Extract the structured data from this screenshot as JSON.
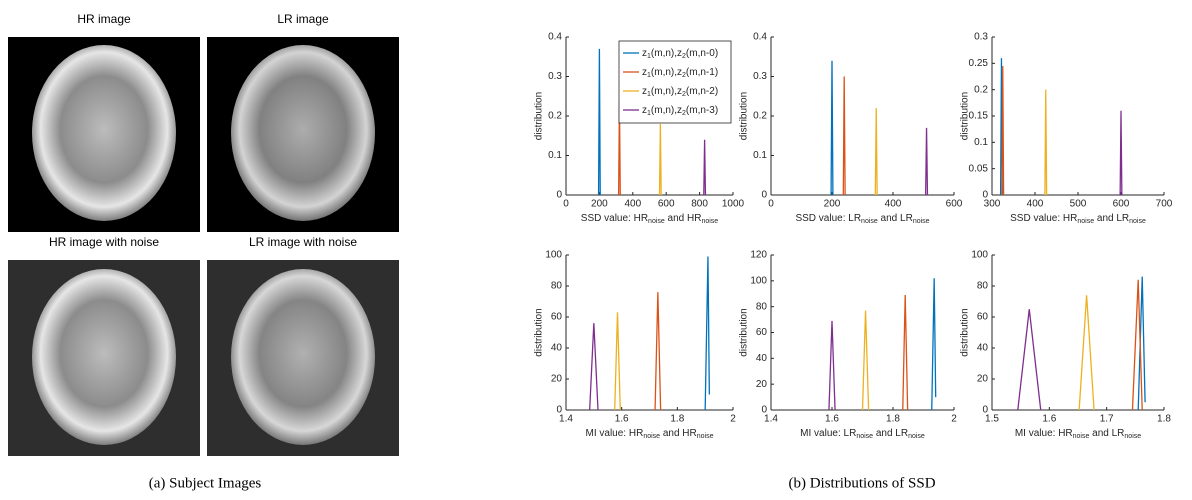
{
  "images": [
    {
      "title": "HR image"
    },
    {
      "title": "LR image"
    },
    {
      "title": "HR image with noise"
    },
    {
      "title": "LR image with noise"
    }
  ],
  "captions": [
    "(a) Subject Images",
    "(b) Distributions of SSD"
  ],
  "chart_data": [
    {
      "type": "line",
      "ylabel": "distribution",
      "xlabel": [
        {
          "text": "SSD value: HR"
        },
        {
          "sub": "noise"
        },
        {
          "text": " and HR"
        },
        {
          "sub": "noise"
        }
      ],
      "xlim": [
        0,
        1000
      ],
      "xticks": [
        0,
        200,
        400,
        600,
        800,
        1000
      ],
      "ylim": [
        0,
        0.4
      ],
      "yticks": [
        0,
        0.1,
        0.2,
        0.3,
        0.4
      ],
      "legend": "upper right",
      "series": [
        {
          "name": [
            {
              "text": "z"
            },
            {
              "sub": "1"
            },
            {
              "text": "(m,n),z"
            },
            {
              "sub": "2"
            },
            {
              "text": "(m,n-0)"
            }
          ],
          "color": "#0072bd",
          "x": [
            195,
            200,
            205
          ],
          "values": [
            0,
            0.37,
            0
          ]
        },
        {
          "name": [
            {
              "text": "z"
            },
            {
              "sub": "1"
            },
            {
              "text": "(m,n),z"
            },
            {
              "sub": "2"
            },
            {
              "text": "(m,n-1)"
            }
          ],
          "color": "#d95319",
          "x": [
            315,
            320,
            325
          ],
          "values": [
            0,
            0.24,
            0
          ]
        },
        {
          "name": [
            {
              "text": "z"
            },
            {
              "sub": "1"
            },
            {
              "text": "(m,n),z"
            },
            {
              "sub": "2"
            },
            {
              "text": "(m,n-2)"
            }
          ],
          "color": "#edb120",
          "x": [
            560,
            565,
            570
          ],
          "values": [
            0,
            0.18,
            0
          ]
        },
        {
          "name": [
            {
              "text": "z"
            },
            {
              "sub": "1"
            },
            {
              "text": "(m,n),z"
            },
            {
              "sub": "2"
            },
            {
              "text": "(m,n-3)"
            }
          ],
          "color": "#7e2f8e",
          "x": [
            825,
            830,
            835
          ],
          "values": [
            0,
            0.14,
            0
          ]
        }
      ]
    },
    {
      "type": "line",
      "ylabel": "distribution",
      "xlabel": [
        {
          "text": "SSD value: LR"
        },
        {
          "sub": "noise"
        },
        {
          "text": " and LR"
        },
        {
          "sub": "noise"
        }
      ],
      "xlim": [
        0,
        600
      ],
      "xticks": [
        0,
        200,
        400,
        600
      ],
      "ylim": [
        0,
        0.4
      ],
      "yticks": [
        0,
        0.1,
        0.2,
        0.3,
        0.4
      ],
      "series": [
        {
          "color": "#0072bd",
          "x": [
            197,
            200,
            203
          ],
          "values": [
            0,
            0.34,
            0
          ]
        },
        {
          "color": "#d95319",
          "x": [
            237,
            240,
            243
          ],
          "values": [
            0,
            0.3,
            0
          ]
        },
        {
          "color": "#edb120",
          "x": [
            342,
            345,
            348
          ],
          "values": [
            0,
            0.22,
            0
          ]
        },
        {
          "color": "#7e2f8e",
          "x": [
            507,
            510,
            513
          ],
          "values": [
            0,
            0.17,
            0
          ]
        }
      ]
    },
    {
      "type": "line",
      "ylabel": "distribution",
      "xlabel": [
        {
          "text": "SSD value: HR"
        },
        {
          "sub": "noise"
        },
        {
          "text": " and LR"
        },
        {
          "sub": "noise"
        }
      ],
      "xlim": [
        300,
        700
      ],
      "xticks": [
        300,
        400,
        500,
        600,
        700
      ],
      "ylim": [
        0,
        0.3
      ],
      "yticks": [
        0,
        0.05,
        0.1,
        0.15,
        0.2,
        0.25,
        0.3
      ],
      "series": [
        {
          "color": "#0072bd",
          "x": [
            320,
            322,
            324
          ],
          "values": [
            0,
            0.26,
            0
          ]
        },
        {
          "color": "#d95319",
          "x": [
            323,
            325,
            327
          ],
          "values": [
            0,
            0.245,
            0
          ]
        },
        {
          "color": "#edb120",
          "x": [
            423,
            425,
            427
          ],
          "values": [
            0,
            0.2,
            0
          ]
        },
        {
          "color": "#7e2f8e",
          "x": [
            598,
            600,
            602
          ],
          "values": [
            0,
            0.16,
            0
          ]
        }
      ]
    },
    {
      "type": "line",
      "ylabel": "distribution",
      "xlabel": [
        {
          "text": "MI value: HR"
        },
        {
          "sub": "noise"
        },
        {
          "text": " and HR"
        },
        {
          "sub": "noise"
        }
      ],
      "xlim": [
        1.4,
        2
      ],
      "xticks": [
        1.4,
        1.6,
        1.8,
        2
      ],
      "ylim": [
        0,
        100
      ],
      "yticks": [
        0,
        20,
        40,
        60,
        80,
        100
      ],
      "series": [
        {
          "color": "#0072bd",
          "x": [
            1.9,
            1.91,
            1.915
          ],
          "values": [
            0,
            99,
            10
          ]
        },
        {
          "color": "#d95319",
          "x": [
            1.72,
            1.73,
            1.74
          ],
          "values": [
            0,
            76,
            0
          ]
        },
        {
          "color": "#edb120",
          "x": [
            1.575,
            1.585,
            1.595
          ],
          "values": [
            0,
            63,
            0
          ]
        },
        {
          "color": "#7e2f8e",
          "x": [
            1.485,
            1.5,
            1.515
          ],
          "values": [
            0,
            56,
            0
          ]
        }
      ]
    },
    {
      "type": "line",
      "ylabel": "distribution",
      "xlabel": [
        {
          "text": "MI value: LR"
        },
        {
          "sub": "noise"
        },
        {
          "text": " and LR"
        },
        {
          "sub": "noise"
        }
      ],
      "xlim": [
        1.4,
        2
      ],
      "xticks": [
        1.4,
        1.6,
        1.8,
        2
      ],
      "ylim": [
        0,
        120
      ],
      "yticks": [
        0,
        20,
        40,
        60,
        80,
        100,
        120
      ],
      "series": [
        {
          "color": "#0072bd",
          "x": [
            1.927,
            1.935,
            1.94
          ],
          "values": [
            0,
            102,
            10
          ]
        },
        {
          "color": "#d95319",
          "x": [
            1.832,
            1.84,
            1.848
          ],
          "values": [
            0,
            89,
            0
          ]
        },
        {
          "color": "#edb120",
          "x": [
            1.7,
            1.71,
            1.72
          ],
          "values": [
            0,
            77,
            0
          ]
        },
        {
          "color": "#7e2f8e",
          "x": [
            1.59,
            1.6,
            1.61
          ],
          "values": [
            0,
            69,
            0
          ]
        }
      ]
    },
    {
      "type": "line",
      "ylabel": "distribution",
      "xlabel": [
        {
          "text": "MI value: HR"
        },
        {
          "sub": "noise"
        },
        {
          "text": " and LR"
        },
        {
          "sub": "noise"
        }
      ],
      "xlim": [
        1.5,
        1.8
      ],
      "xticks": [
        1.5,
        1.6,
        1.7,
        1.8
      ],
      "ylim": [
        0,
        100
      ],
      "yticks": [
        0,
        20,
        40,
        60,
        80,
        100
      ],
      "series": [
        {
          "color": "#0072bd",
          "x": [
            1.755,
            1.762,
            1.767
          ],
          "values": [
            0,
            86,
            5
          ]
        },
        {
          "color": "#d95319",
          "x": [
            1.745,
            1.755,
            1.762
          ],
          "values": [
            0,
            84,
            0
          ]
        },
        {
          "color": "#edb120",
          "x": [
            1.652,
            1.665,
            1.678
          ],
          "values": [
            0,
            74,
            0
          ]
        },
        {
          "color": "#7e2f8e",
          "x": [
            1.545,
            1.565,
            1.585
          ],
          "values": [
            0,
            65,
            0
          ]
        }
      ]
    }
  ]
}
